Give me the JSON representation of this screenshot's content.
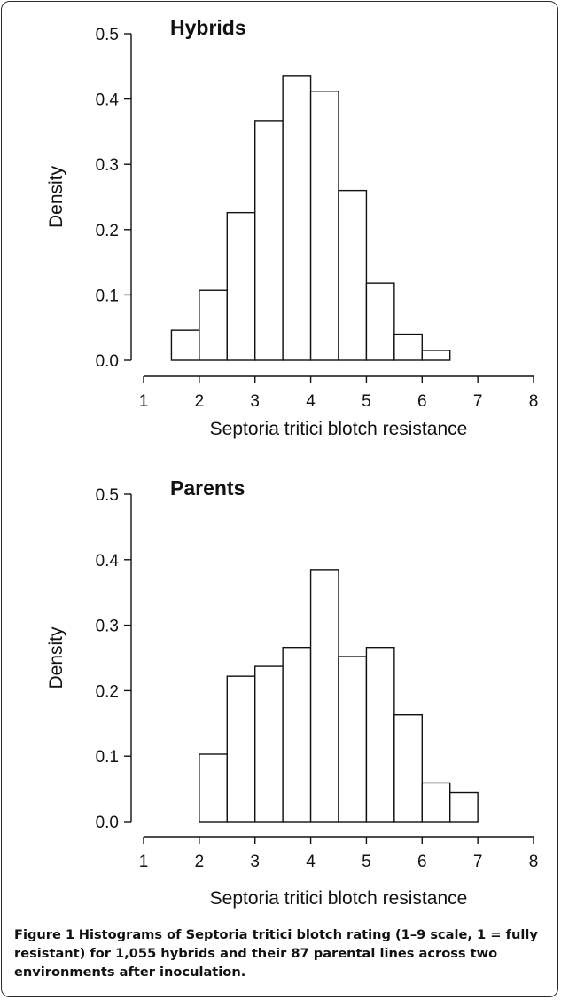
{
  "chart_data": [
    {
      "type": "bar",
      "title": "Hybrids",
      "xlabel": "Septoria tritici blotch resistance",
      "ylabel": "Density",
      "xlim": [
        1,
        8
      ],
      "ylim": [
        0,
        0.5
      ],
      "xticks": [
        "1",
        "2",
        "3",
        "4",
        "5",
        "6",
        "7",
        "8"
      ],
      "yticks": [
        "0.0",
        "0.1",
        "0.2",
        "0.3",
        "0.4",
        "0.5"
      ],
      "bins": [
        {
          "x0": 1.5,
          "x1": 2.0,
          "value": 0.046
        },
        {
          "x0": 2.0,
          "x1": 2.5,
          "value": 0.107
        },
        {
          "x0": 2.5,
          "x1": 3.0,
          "value": 0.226
        },
        {
          "x0": 3.0,
          "x1": 3.5,
          "value": 0.367
        },
        {
          "x0": 3.5,
          "x1": 4.0,
          "value": 0.435
        },
        {
          "x0": 4.0,
          "x1": 4.5,
          "value": 0.412
        },
        {
          "x0": 4.5,
          "x1": 5.0,
          "value": 0.26
        },
        {
          "x0": 5.0,
          "x1": 5.5,
          "value": 0.118
        },
        {
          "x0": 5.5,
          "x1": 6.0,
          "value": 0.04
        },
        {
          "x0": 6.0,
          "x1": 6.5,
          "value": 0.015
        }
      ]
    },
    {
      "type": "bar",
      "title": "Parents",
      "xlabel": "Septoria tritici blotch resistance",
      "ylabel": "Density",
      "xlim": [
        1,
        8
      ],
      "ylim": [
        0,
        0.5
      ],
      "xticks": [
        "1",
        "2",
        "3",
        "4",
        "5",
        "6",
        "7",
        "8"
      ],
      "yticks": [
        "0.0",
        "0.1",
        "0.2",
        "0.3",
        "0.4",
        "0.5"
      ],
      "bins": [
        {
          "x0": 2.0,
          "x1": 2.5,
          "value": 0.103
        },
        {
          "x0": 2.5,
          "x1": 3.0,
          "value": 0.222
        },
        {
          "x0": 3.0,
          "x1": 3.5,
          "value": 0.237
        },
        {
          "x0": 3.5,
          "x1": 4.0,
          "value": 0.266
        },
        {
          "x0": 4.0,
          "x1": 4.5,
          "value": 0.385
        },
        {
          "x0": 4.5,
          "x1": 5.0,
          "value": 0.252
        },
        {
          "x0": 5.0,
          "x1": 5.5,
          "value": 0.266
        },
        {
          "x0": 5.5,
          "x1": 6.0,
          "value": 0.163
        },
        {
          "x0": 6.0,
          "x1": 6.5,
          "value": 0.059
        },
        {
          "x0": 6.5,
          "x1": 7.0,
          "value": 0.044
        }
      ]
    }
  ],
  "caption": {
    "label": "Figure 1",
    "text": "Histograms of Septoria tritici blotch rating (1–9 scale, 1 = fully resistant) for 1,055 hybrids and their 87 parental lines across two environments after inoculation."
  }
}
